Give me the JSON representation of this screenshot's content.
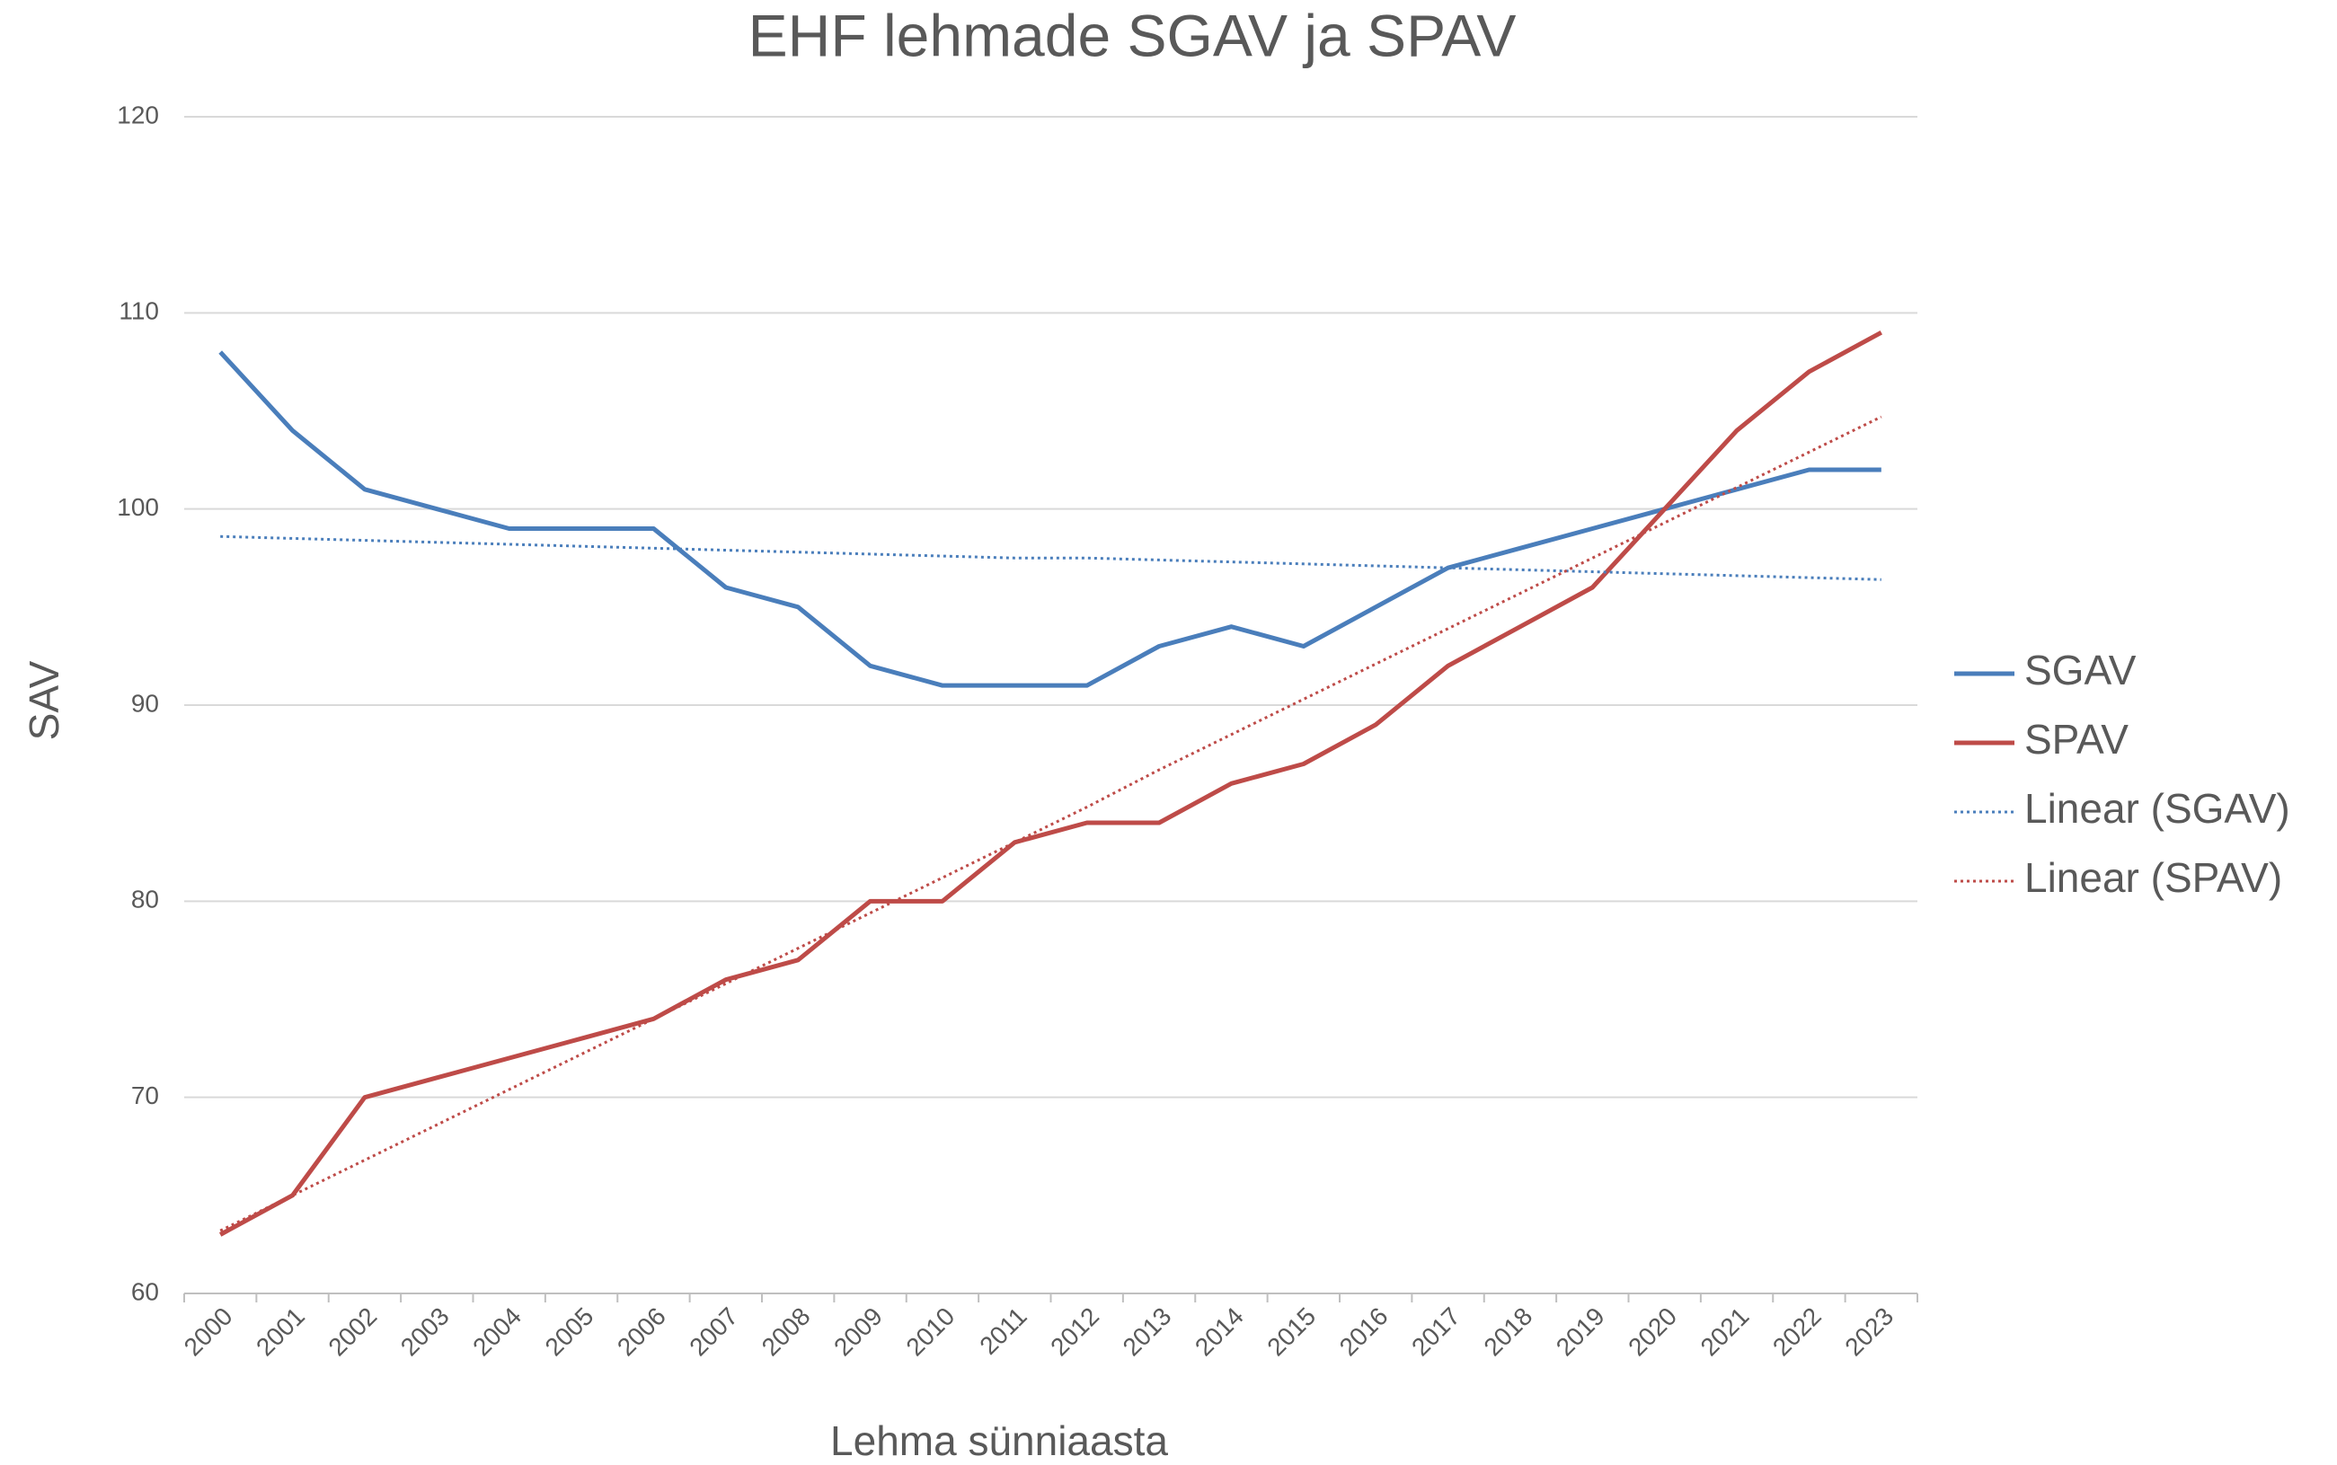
{
  "chart_data": {
    "type": "line",
    "title": "EHF lehmade SGAV ja SPAV",
    "x_label": "Lehma sünniaasta",
    "y_label": "SAV",
    "categories": [
      "2000",
      "2001",
      "2002",
      "2003",
      "2004",
      "2005",
      "2006",
      "2007",
      "2008",
      "2009",
      "2010",
      "2011",
      "2012",
      "2013",
      "2014",
      "2015",
      "2016",
      "2017",
      "2018",
      "2019",
      "2020",
      "2021",
      "2022",
      "2023"
    ],
    "series": [
      {
        "name": "SGAV",
        "color": "#4a7ebb",
        "style": "solid",
        "values": [
          108,
          104,
          101,
          100,
          99,
          99,
          99,
          96,
          95,
          92,
          91,
          91,
          91,
          93,
          94,
          93,
          95,
          97,
          98,
          99,
          100,
          101,
          102,
          102
        ]
      },
      {
        "name": "SPAV",
        "color": "#be4b48",
        "style": "solid",
        "values": [
          63,
          65,
          70,
          71,
          72,
          73,
          74,
          76,
          77,
          80,
          80,
          83,
          84,
          84,
          86,
          87,
          89,
          92,
          94,
          96,
          100,
          104,
          107,
          109
        ]
      },
      {
        "name": "Linear (SGAV)",
        "color": "#4a7ebb",
        "style": "dotted",
        "values": [
          98.6,
          98.5,
          98.4,
          98.3,
          98.2,
          98.1,
          98.0,
          97.9,
          97.8,
          97.7,
          97.6,
          97.5,
          97.5,
          97.4,
          97.3,
          97.2,
          97.1,
          97.0,
          96.9,
          96.8,
          96.7,
          96.6,
          96.5,
          96.4
        ]
      },
      {
        "name": "Linear (SPAV)",
        "color": "#be4b48",
        "style": "dotted",
        "values": [
          63.2,
          65.0,
          66.8,
          68.6,
          70.4,
          72.2,
          74.0,
          75.8,
          77.6,
          79.4,
          81.2,
          83.0,
          84.8,
          86.7,
          88.5,
          90.3,
          92.1,
          93.9,
          95.7,
          97.5,
          99.3,
          101.1,
          102.9,
          104.7
        ]
      }
    ],
    "ylim": [
      60,
      120
    ],
    "yticks": [
      60,
      70,
      80,
      90,
      100,
      110,
      120
    ],
    "grid": true,
    "legend": "right"
  }
}
